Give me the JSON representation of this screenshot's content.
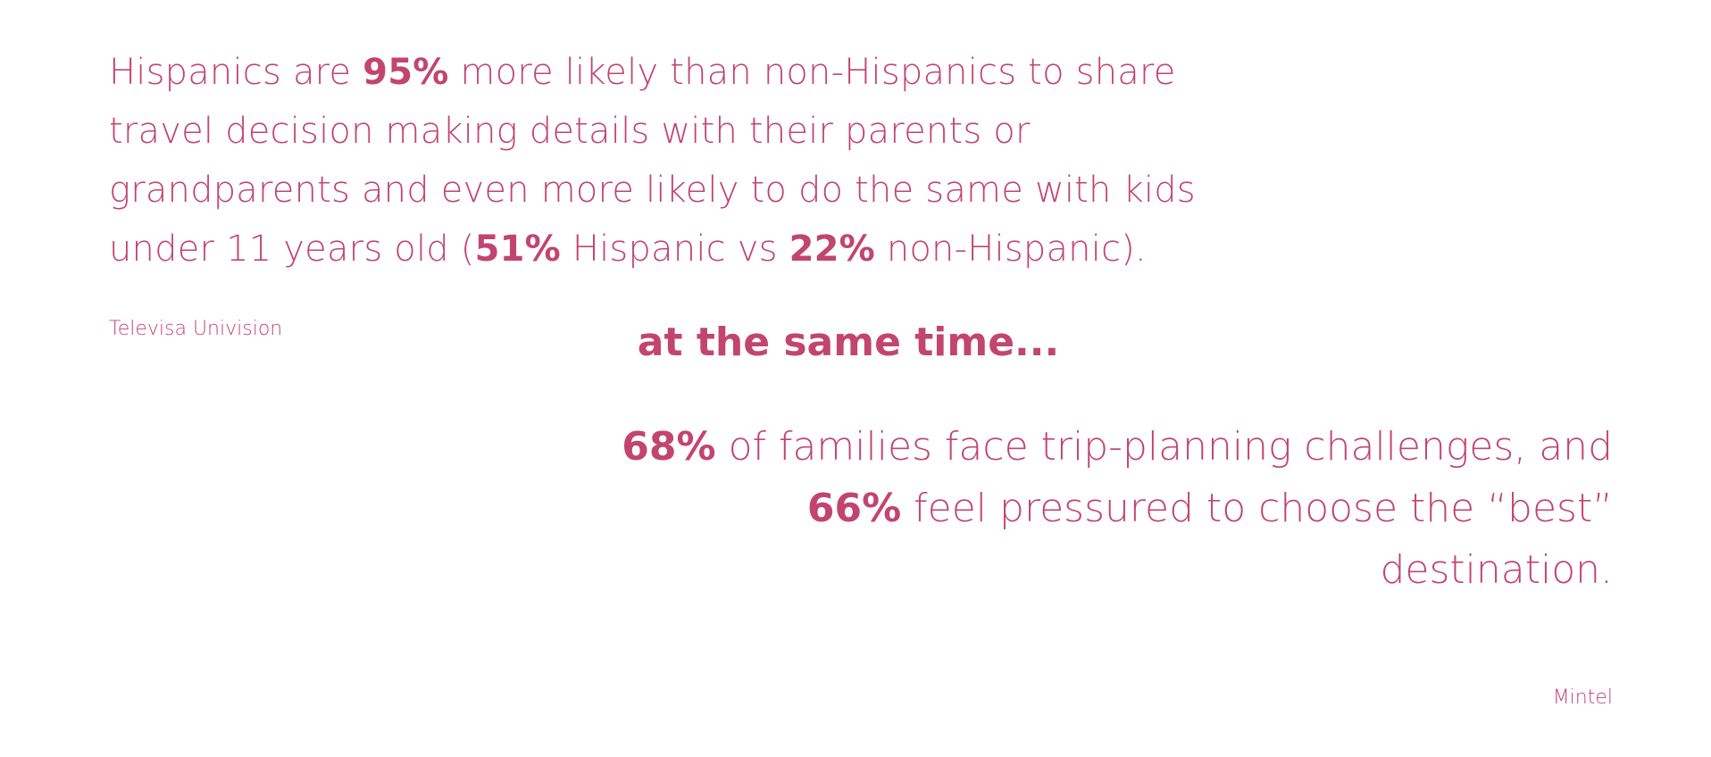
{
  "brand_color": "#c2456f",
  "stat_one": {
    "p1": "Hispanics are ",
    "b1": "95%",
    "p2": " more likely than non-Hispanics to share travel decision making details with their parents or grandparents and even more likely to do the same with kids under 11 years old (",
    "b2": "51%",
    "p3": " Hispanic vs ",
    "b3": "22%",
    "p4": " non-Hispanic).",
    "source": "Televisa Univision"
  },
  "connector": "at the same time...",
  "stat_two": {
    "b1": "68%",
    "p1": " of families face trip-planning challenges, and ",
    "b2": "66%",
    "p2": " feel pressured to choose the “best” destination.",
    "source": "Mintel"
  }
}
